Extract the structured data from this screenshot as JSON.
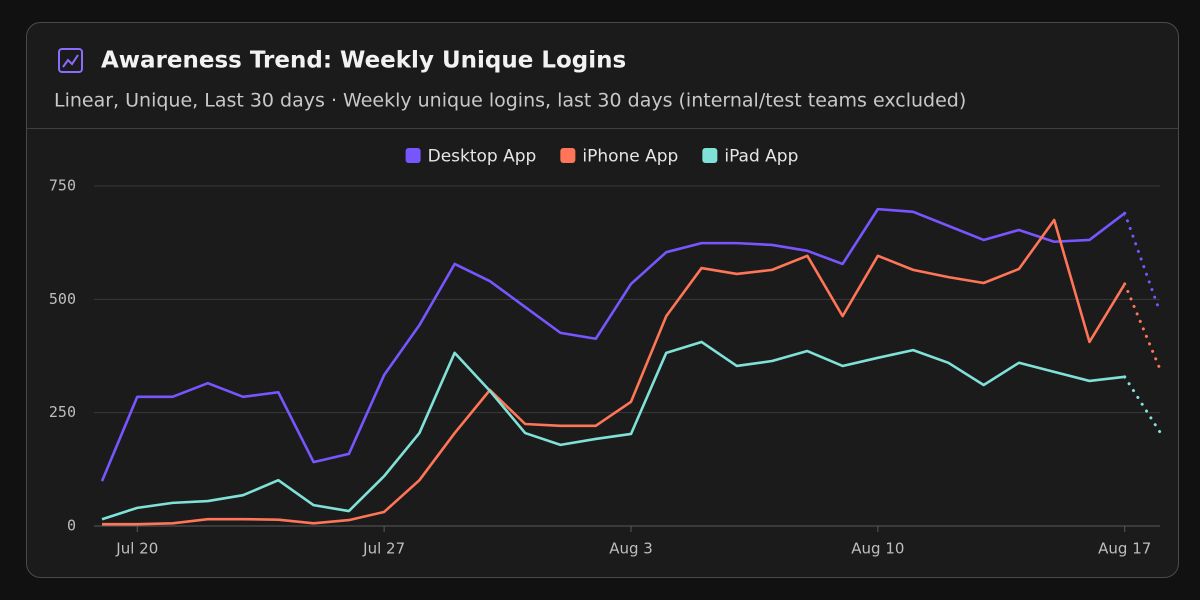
{
  "chart_data": {
    "type": "line",
    "title": "Awareness Trend: Weekly Unique Logins",
    "subtitle": "Linear, Unique, Last 30 days · Weekly unique logins, last 30 days (internal/test teams excluded)",
    "categories": [
      null,
      "Jul 20",
      null,
      null,
      null,
      null,
      null,
      null,
      "Jul 27",
      null,
      null,
      null,
      null,
      null,
      null,
      "Aug 3",
      null,
      null,
      null,
      null,
      null,
      null,
      "Aug 10",
      null,
      null,
      null,
      null,
      null,
      null,
      "Aug 17",
      null
    ],
    "series": [
      {
        "name": "Desktop App",
        "color": "#7856ff",
        "values": [
          99,
          285,
          285,
          315,
          285,
          295,
          141,
          159,
          333,
          443,
          578,
          540,
          483,
          426,
          413,
          534,
          604,
          624,
          624,
          620,
          607,
          578,
          699,
          693,
          662,
          631,
          653,
          627,
          631,
          690,
          472
        ]
      },
      {
        "name": "iPhone App",
        "color": "#ff7557",
        "values": [
          4,
          4,
          6,
          15,
          15,
          14,
          6,
          13,
          31,
          101,
          205,
          300,
          225,
          221,
          221,
          274,
          463,
          569,
          556,
          565,
          596,
          463,
          596,
          565,
          549,
          536,
          567,
          675,
          406,
          534,
          346
        ]
      },
      {
        "name": "iPad App",
        "color": "#80e1d9",
        "values": [
          15,
          40,
          51,
          55,
          68,
          101,
          46,
          33,
          110,
          205,
          382,
          298,
          205,
          179,
          192,
          203,
          382,
          406,
          353,
          364,
          386,
          353,
          371,
          388,
          360,
          311,
          360,
          340,
          320,
          329,
          207
        ]
      }
    ],
    "ylim": [
      0,
      750
    ],
    "yticks": [
      0,
      250,
      500,
      750
    ],
    "grid": true,
    "legend": "top",
    "partial_last_point": true
  }
}
